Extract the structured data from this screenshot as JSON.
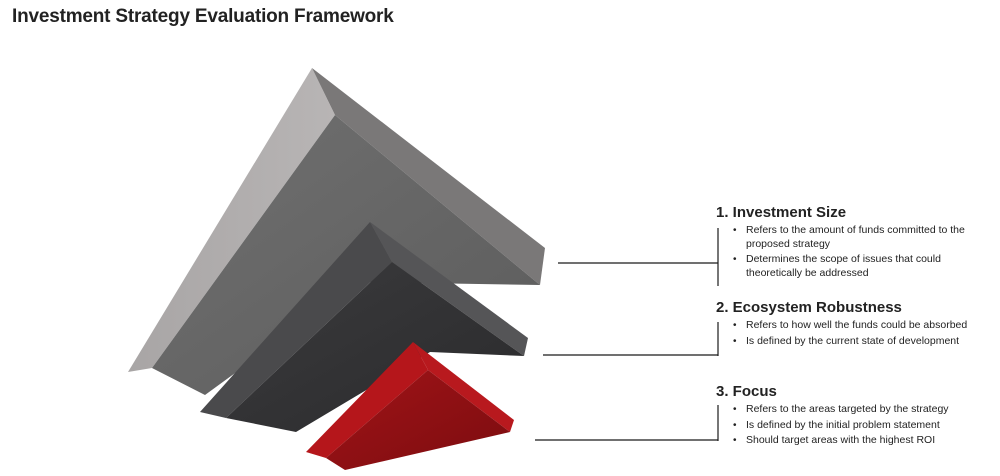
{
  "title": "Investment Strategy Evaluation Framework",
  "items": [
    {
      "heading": "1. Investment Size",
      "bullets": [
        "Refers to the amount of funds committed to the proposed strategy",
        "Determines the scope of issues that could theoretically be addressed"
      ],
      "color": "#9e9c9c"
    },
    {
      "heading": "2. Ecosystem Robustness",
      "bullets": [
        "Refers to how well the funds could be absorbed",
        "Is defined by the current state of development"
      ],
      "color": "#3a3a3c"
    },
    {
      "heading": "3. Focus",
      "bullets": [
        "Refers to the areas targeted by the strategy",
        "Is defined by the initial problem statement",
        "Should target areas with the highest ROI"
      ],
      "color": "#8b0f12"
    }
  ]
}
